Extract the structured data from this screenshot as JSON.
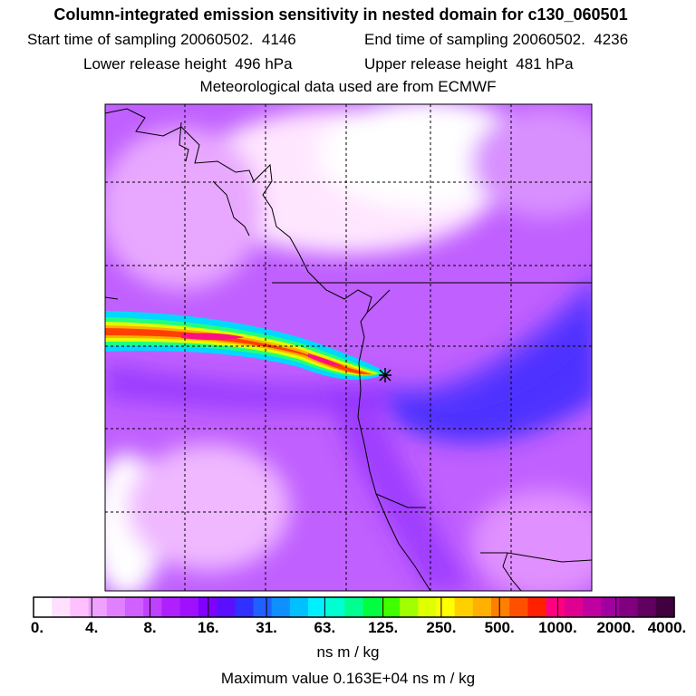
{
  "header": {
    "title": "Column-integrated emission sensitivity in nested domain for c130_060501",
    "start_label": "Start time of sampling 20060502.  4146",
    "end_label": "End time of sampling 20060502.  4236",
    "lower_label": "Lower release height  496 hPa",
    "upper_label": "Upper release height  481 hPa",
    "met_label": "Meteorological data used are from ECMWF"
  },
  "chart_data": {
    "type": "heatmap",
    "title": "Column-integrated emission sensitivity in nested domain for c130_060501",
    "units": "ns m / kg",
    "max_value_label": "Maximum value  0.163E+04 ns m / kg",
    "colorbar_ticks": [
      "0.",
      "4.",
      "8.",
      "16.",
      "31.",
      "63.",
      "125.",
      "250.",
      "500.",
      "1000.",
      "2000.",
      "4000."
    ],
    "colorbar_colors": [
      "#ffffff",
      "#ffe0ff",
      "#ffc0ff",
      "#f0a0ff",
      "#e080ff",
      "#d060ff",
      "#c040ff",
      "#b020ff",
      "#a010ff",
      "#8000ff",
      "#5a10ff",
      "#3030ff",
      "#2060ff",
      "#1090ff",
      "#00c0ff",
      "#00f0ff",
      "#00ffd0",
      "#00ff90",
      "#00ff40",
      "#40ff00",
      "#a0ff00",
      "#e0ff00",
      "#ffff00",
      "#ffd000",
      "#ffb000",
      "#ff8000",
      "#ff5000",
      "#ff2000",
      "#ff0080",
      "#e00090",
      "#c000a0",
      "#a000a0",
      "#800080",
      "#600060",
      "#400040"
    ],
    "max_value": 1630,
    "grid": true,
    "plume_release_point": "center-right of domain"
  }
}
